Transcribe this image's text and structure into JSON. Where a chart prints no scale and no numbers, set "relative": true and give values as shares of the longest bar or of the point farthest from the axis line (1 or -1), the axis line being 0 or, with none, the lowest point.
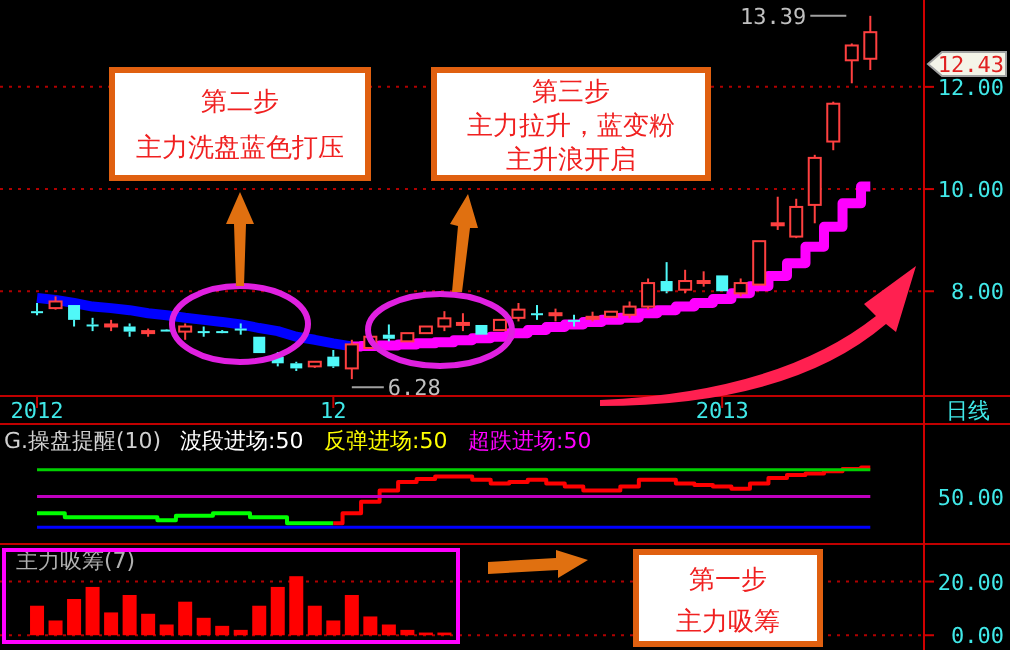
{
  "chart_data": [
    {
      "type": "candlestick",
      "categories": [
        "2012",
        null,
        null,
        null,
        null,
        null,
        null,
        null,
        null,
        null,
        null,
        null,
        null,
        null,
        null,
        null,
        "12",
        null,
        null,
        null,
        null,
        null,
        null,
        null,
        null,
        null,
        null,
        null,
        null,
        null,
        null,
        null,
        null,
        null,
        null,
        null,
        null,
        "2013",
        null,
        null,
        null,
        null,
        null,
        null,
        null,
        null
      ],
      "ohlc": [
        [
          7.61,
          7.77,
          7.53,
          7.6
        ],
        [
          7.67,
          7.9,
          7.64,
          7.8
        ],
        [
          7.73,
          7.73,
          7.31,
          7.44
        ],
        [
          7.35,
          7.48,
          7.22,
          7.34
        ],
        [
          7.34,
          7.44,
          7.22,
          7.35
        ],
        [
          7.31,
          7.37,
          7.11,
          7.21
        ],
        [
          7.21,
          7.27,
          7.11,
          7.22
        ],
        [
          7.25,
          7.26,
          7.22,
          7.24
        ],
        [
          7.21,
          7.37,
          7.05,
          7.31
        ],
        [
          7.22,
          7.31,
          7.11,
          7.21
        ],
        [
          7.22,
          7.24,
          7.18,
          7.21
        ],
        [
          7.27,
          7.37,
          7.15,
          7.26
        ],
        [
          7.11,
          7.11,
          6.79,
          6.79
        ],
        [
          6.72,
          6.81,
          6.53,
          6.59
        ],
        [
          6.59,
          6.62,
          6.44,
          6.49
        ],
        [
          6.53,
          6.62,
          6.5,
          6.62
        ],
        [
          6.72,
          6.85,
          6.5,
          6.53
        ],
        [
          6.49,
          7.05,
          6.28,
          6.96
        ],
        [
          6.89,
          7.11,
          6.89,
          7.11
        ],
        [
          7.15,
          7.35,
          7.02,
          7.07
        ],
        [
          7.02,
          7.18,
          7.02,
          7.18
        ],
        [
          7.18,
          7.31,
          7.18,
          7.31
        ],
        [
          7.31,
          7.61,
          7.22,
          7.47
        ],
        [
          7.37,
          7.57,
          7.22,
          7.38
        ],
        [
          7.34,
          7.34,
          7.15,
          7.15
        ],
        [
          7.24,
          7.44,
          7.24,
          7.44
        ],
        [
          7.48,
          7.77,
          7.41,
          7.64
        ],
        [
          7.57,
          7.73,
          7.44,
          7.56
        ],
        [
          7.56,
          7.66,
          7.41,
          7.57
        ],
        [
          7.44,
          7.54,
          7.31,
          7.43
        ],
        [
          7.49,
          7.6,
          7.41,
          7.5
        ],
        [
          7.5,
          7.6,
          7.5,
          7.6
        ],
        [
          7.54,
          7.8,
          7.47,
          7.7
        ],
        [
          7.7,
          8.25,
          7.64,
          8.16
        ],
        [
          8.2,
          8.57,
          7.96,
          8
        ],
        [
          8.03,
          8.42,
          7.96,
          8.2
        ],
        [
          8.19,
          8.39,
          8.09,
          8.2
        ],
        [
          8.31,
          8.31,
          8,
          8
        ],
        [
          7.96,
          8.25,
          7.9,
          8.16
        ],
        [
          8.13,
          8.98,
          8.13,
          8.98
        ],
        [
          9.32,
          9.85,
          9.2,
          9.33
        ],
        [
          9.07,
          9.81,
          9.04,
          9.65
        ],
        [
          9.69,
          10.67,
          9.33,
          10.61
        ],
        [
          10.93,
          11.71,
          10.76,
          11.67
        ],
        [
          12.52,
          12.85,
          12.07,
          12.81
        ],
        [
          12.55,
          13.39,
          12.33,
          13.07
        ]
      ],
      "series": [
        {
          "type": "line",
          "color": "#0000ff",
          "values": [
            7.87,
            7.83,
            7.77,
            7.7,
            7.67,
            7.63,
            7.57,
            7.53,
            7.48,
            7.44,
            7.4,
            7.35,
            7.28,
            7.22,
            7.11,
            7.05,
            6.98,
            6.92,
            null,
            null,
            null,
            null,
            null,
            null,
            null,
            null,
            null,
            null,
            null,
            null,
            null,
            null,
            null,
            null,
            null,
            null,
            null,
            null,
            null,
            null,
            null,
            null,
            null,
            null,
            null,
            null
          ]
        },
        {
          "type": "step",
          "color": "#ff00ff",
          "values": [
            null,
            null,
            null,
            null,
            null,
            null,
            null,
            null,
            null,
            null,
            null,
            null,
            null,
            null,
            null,
            null,
            null,
            6.92,
            6.93,
            6.94,
            6.96,
            6.98,
            7,
            7.04,
            7.08,
            7.11,
            7.18,
            7.24,
            7.3,
            7.35,
            7.4,
            7.44,
            7.48,
            7.57,
            7.63,
            7.7,
            7.77,
            7.85,
            7.96,
            8.1,
            8.3,
            8.55,
            8.87,
            9.26,
            9.72,
            10.05
          ]
        }
      ],
      "ylim": [
        5.95,
        13.7
      ],
      "yticks": [
        {
          "value": 8,
          "label": "8.00"
        },
        {
          "value": 10,
          "label": "10.00"
        },
        {
          "value": 12,
          "label": "12.00"
        }
      ],
      "grid": "y",
      "annotations": [
        "第二步",
        "主力洗盘蓝色打压",
        "第三步",
        "主力拉升，蓝变粉",
        "主升浪开启",
        "日线",
        "13.39",
        "6.28",
        "12.43"
      ]
    },
    {
      "type": "step",
      "relative": true,
      "title": "G.操盘提醒(10)",
      "categories": [
        null,
        null,
        null,
        null,
        null,
        null,
        null,
        null,
        null,
        null,
        null,
        null,
        null,
        null,
        null,
        null,
        null,
        null,
        null,
        null,
        null,
        null,
        null,
        null,
        null,
        null,
        null,
        null,
        null,
        null,
        null,
        null,
        null,
        null,
        null,
        null,
        null,
        null,
        null,
        null,
        null,
        null,
        null,
        null,
        null,
        null
      ],
      "series": [
        {
          "color": "#00ff00",
          "values": [
            0.4,
            0.4,
            0.35,
            0.35,
            0.35,
            0.35,
            0.35,
            0.31,
            0.37,
            0.37,
            0.4,
            0.4,
            0.35,
            0.35,
            0.27,
            0.27,
            0.27,
            null,
            null,
            null,
            null,
            null,
            null,
            null,
            null,
            null,
            null,
            null,
            null,
            null,
            null,
            null,
            null,
            null,
            null,
            null,
            null,
            null,
            null,
            null,
            null,
            null,
            null,
            null,
            null,
            null
          ]
        },
        {
          "color": "#ff0000",
          "values": [
            null,
            null,
            null,
            null,
            null,
            null,
            null,
            null,
            null,
            null,
            null,
            null,
            null,
            null,
            null,
            null,
            0.27,
            0.4,
            0.55,
            0.7,
            0.81,
            0.85,
            0.88,
            0.88,
            0.84,
            0.79,
            0.81,
            0.84,
            0.79,
            0.75,
            0.7,
            0.7,
            0.75,
            0.84,
            0.84,
            0.79,
            0.77,
            0.75,
            0.72,
            0.79,
            0.86,
            0.9,
            0.92,
            0.95,
            0.98,
            1
          ]
        },
        {
          "type": "line",
          "color": "#00d000",
          "values": [
            0.97,
            0.97,
            0.97,
            0.97,
            0.97,
            0.97,
            0.97,
            0.97,
            0.97,
            0.97,
            0.97,
            0.97,
            0.97,
            0.97,
            0.97,
            0.97,
            0.97,
            0.97,
            0.97,
            0.97,
            0.97,
            0.97,
            0.97,
            0.97,
            0.97,
            0.97,
            0.97,
            0.97,
            0.97,
            0.97,
            0.97,
            0.97,
            0.97,
            0.97,
            0.97,
            0.97,
            0.97,
            0.97,
            0.97,
            0.97,
            0.97,
            0.97,
            0.97,
            0.97,
            0.97,
            0.97
          ]
        },
        {
          "type": "line",
          "color": "#c000c0",
          "values": [
            0.62,
            0.62,
            0.62,
            0.62,
            0.62,
            0.62,
            0.62,
            0.62,
            0.62,
            0.62,
            0.62,
            0.62,
            0.62,
            0.62,
            0.62,
            0.62,
            0.62,
            0.62,
            0.62,
            0.62,
            0.62,
            0.62,
            0.62,
            0.62,
            0.62,
            0.62,
            0.62,
            0.62,
            0.62,
            0.62,
            0.62,
            0.62,
            0.62,
            0.62,
            0.62,
            0.62,
            0.62,
            0.62,
            0.62,
            0.62,
            0.62,
            0.62,
            0.62,
            0.62,
            0.62,
            0.62
          ]
        },
        {
          "type": "line",
          "color": "#0000ff",
          "values": [
            0.22,
            0.22,
            0.22,
            0.22,
            0.22,
            0.22,
            0.22,
            0.22,
            0.22,
            0.22,
            0.22,
            0.22,
            0.22,
            0.22,
            0.22,
            0.22,
            0.22,
            0.22,
            0.22,
            0.22,
            0.22,
            0.22,
            0.22,
            0.22,
            0.22,
            0.22,
            0.22,
            0.22,
            0.22,
            0.22,
            0.22,
            0.22,
            0.22,
            0.22,
            0.22,
            0.22,
            0.22,
            0.22,
            0.22,
            0.22,
            0.22,
            0.22,
            0.22,
            0.22,
            0.22,
            0.22
          ]
        }
      ],
      "annotations": [
        "波段进场:50",
        "反弹进场:50",
        "超跌进场:50",
        "50.00"
      ]
    },
    {
      "type": "bar",
      "title": "主力吸筹(7)",
      "color": "#ff0000",
      "categories": [
        null,
        null,
        null,
        null,
        null,
        null,
        null,
        null,
        null,
        null,
        null,
        null,
        null,
        null,
        null,
        null,
        null,
        null,
        null,
        null,
        null,
        null,
        null,
        null,
        null,
        null,
        null,
        null,
        null,
        null,
        null,
        null,
        null,
        null,
        null,
        null,
        null,
        null,
        null,
        null,
        null,
        null,
        null,
        null,
        null,
        null
      ],
      "values": [
        11,
        5.5,
        13.5,
        18,
        8.5,
        15,
        8,
        4,
        12.5,
        6.5,
        3.5,
        2,
        11,
        18,
        22,
        11,
        5.5,
        15,
        7,
        4,
        2,
        1,
        1,
        null,
        null,
        null,
        null,
        null,
        null,
        null,
        null,
        null,
        null,
        null,
        null,
        null,
        null,
        null,
        null,
        null,
        null,
        null,
        null,
        null,
        null,
        null
      ],
      "ylim": [
        -5.5,
        34
      ],
      "yticks": [
        {
          "value": 0,
          "label": "0.00"
        },
        {
          "value": 20,
          "label": "20.00"
        }
      ],
      "grid": "y",
      "annotations": [
        "第一步",
        "主力吸筹"
      ]
    }
  ]
}
